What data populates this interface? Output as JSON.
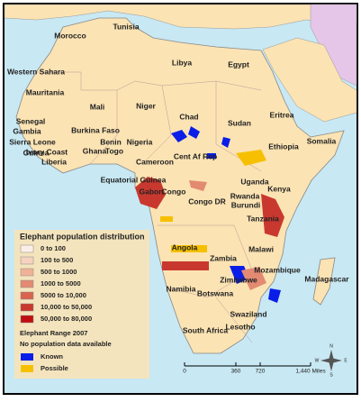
{
  "countries": [
    "Tunisia",
    "Morocco",
    "Libya",
    "Egypt",
    "Western Sahara",
    "Mauritania",
    "Mali",
    "Niger",
    "Chad",
    "Sudan",
    "Eritrea",
    "Senegal",
    "Gambia",
    "Sierra Leone",
    "Guinea",
    "Ivory Coast",
    "Liberia",
    "Burkina Faso",
    "Benin",
    "Ghana",
    "Togo",
    "Nigeria",
    "Cent Af Rep",
    "Ethiopia",
    "Somalia",
    "Cameroon",
    "Equatorial Guinea",
    "Gabon",
    "Congo",
    "Congo DR",
    "Uganda",
    "Kenya",
    "Rwanda",
    "Burundi",
    "Tanzania",
    "Angola",
    "Malawi",
    "Zambia",
    "Mozambique",
    "Zimbabwe",
    "Namibia",
    "Botswana",
    "Madagascar",
    "Swaziland",
    "Lesotho",
    "South Africa"
  ],
  "legend": {
    "title": "Elephant population distribution",
    "classes": [
      {
        "label": "0 to 100",
        "color": "#fbeee6"
      },
      {
        "label": "100 to 500",
        "color": "#f6d2bf"
      },
      {
        "label": "500 to 1000",
        "color": "#efb298"
      },
      {
        "label": "1000 to 5000",
        "color": "#e38a72"
      },
      {
        "label": "5000 to 10,000",
        "color": "#d8634f"
      },
      {
        "label": "10,000 to 50,000",
        "color": "#c9382e"
      },
      {
        "label": "50,000 to 80,000",
        "color": "#c00d12"
      }
    ],
    "range_title": "Elephant Range 2007",
    "range_subtitle": "No population data available",
    "range": [
      {
        "label": "Known",
        "color": "#0a1ee8"
      },
      {
        "label": "Possible",
        "color": "#f6c000"
      }
    ]
  },
  "scale": [
    "0",
    "360",
    "720",
    "1,440 Miles"
  ],
  "compass": [
    "N",
    "E",
    "S",
    "W"
  ]
}
